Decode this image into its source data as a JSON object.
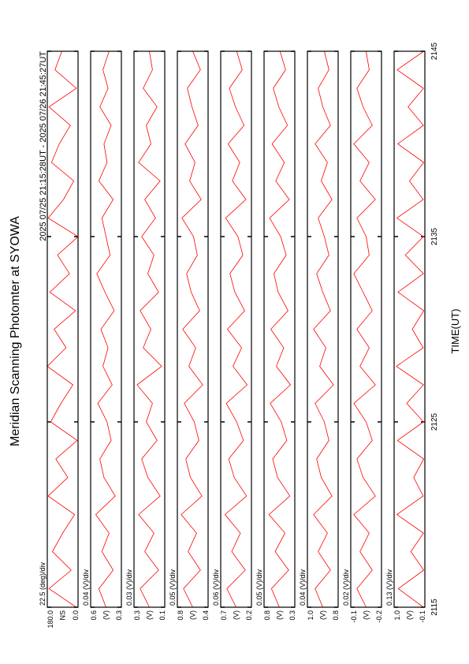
{
  "chart_data": {
    "type": "line",
    "title": "Meridian Scanning Photomter at SYOWA",
    "subtitle": "2025 07/25 21:15:28UT - 2025 07/26 21:45:27UT",
    "xlabel": "TIME(UT)",
    "xlim": [
      2115,
      2145
    ],
    "xticks": [
      2115,
      2125,
      2135,
      2145
    ],
    "x": [
      2115,
      2116,
      2117,
      2118,
      2119,
      2120,
      2121,
      2122,
      2123,
      2124,
      2125,
      2126,
      2127,
      2128,
      2129,
      2130,
      2131,
      2132,
      2133,
      2134,
      2135,
      2136,
      2137,
      2138,
      2139,
      2140,
      2141,
      2142,
      2143,
      2144,
      2145
    ],
    "panels": [
      {
        "header": "22.5 (deg)/div",
        "ylabel": "NS",
        "color": "#ff0000",
        "ylim": [
          0,
          180
        ],
        "yticks": [
          {
            "value": 180,
            "label": "180.0"
          },
          {
            "value": 0,
            "label": "0.0"
          }
        ],
        "values": [
          10,
          170,
          40,
          150,
          90,
          20,
          175,
          60,
          130,
          5,
          160,
          100,
          30,
          180,
          70,
          140,
          15,
          165,
          50,
          120,
          0,
          175,
          85,
          25,
          155,
          110,
          45,
          170,
          10,
          135,
          95
        ]
      },
      {
        "header": "0.04 (V)/div",
        "ylabel": "(V)",
        "color": "#ff0000",
        "ylim": [
          0.3,
          0.6
        ],
        "yticks": [
          0.6,
          0.3
        ],
        "values": [
          0.45,
          0.52,
          0.38,
          0.49,
          0.42,
          0.55,
          0.36,
          0.47,
          0.51,
          0.4,
          0.44,
          0.53,
          0.39,
          0.48,
          0.43,
          0.5,
          0.37,
          0.46,
          0.54,
          0.41,
          0.45,
          0.49,
          0.38,
          0.52,
          0.44,
          0.47,
          0.4,
          0.51,
          0.43,
          0.48,
          0.42
        ]
      },
      {
        "header": "0.03 (V)/div",
        "ylabel": "(V)",
        "color": "#ff0000",
        "ylim": [
          0.1,
          0.3
        ],
        "yticks": [
          0.3,
          0.1
        ],
        "values": [
          0.2,
          0.26,
          0.14,
          0.23,
          0.17,
          0.27,
          0.13,
          0.21,
          0.25,
          0.15,
          0.22,
          0.18,
          0.28,
          0.12,
          0.24,
          0.19,
          0.26,
          0.14,
          0.21,
          0.17,
          0.25,
          0.16,
          0.23,
          0.13,
          0.27,
          0.19,
          0.22,
          0.15,
          0.24,
          0.18,
          0.2
        ]
      },
      {
        "header": "0.05 (V)/div",
        "ylabel": "(V)",
        "color": "#ff0000",
        "ylim": [
          0.4,
          0.8
        ],
        "yticks": [
          0.8,
          0.4
        ],
        "values": [
          0.6,
          0.72,
          0.5,
          0.66,
          0.55,
          0.75,
          0.48,
          0.63,
          0.69,
          0.52,
          0.58,
          0.71,
          0.47,
          0.65,
          0.56,
          0.73,
          0.51,
          0.62,
          0.68,
          0.54,
          0.59,
          0.74,
          0.49,
          0.64,
          0.57,
          0.7,
          0.53,
          0.61,
          0.67,
          0.5,
          0.6
        ]
      },
      {
        "header": "0.06 (V)/div",
        "ylabel": "(V)",
        "color": "#ff0000",
        "ylim": [
          0.2,
          0.7
        ],
        "yticks": [
          0.7,
          0.2
        ],
        "values": [
          0.45,
          0.6,
          0.3,
          0.52,
          0.38,
          0.63,
          0.28,
          0.48,
          0.57,
          0.33,
          0.44,
          0.61,
          0.27,
          0.5,
          0.36,
          0.59,
          0.31,
          0.47,
          0.55,
          0.34,
          0.42,
          0.62,
          0.29,
          0.51,
          0.39,
          0.58,
          0.32,
          0.46,
          0.56,
          0.35,
          0.44
        ]
      },
      {
        "header": "0.05 (V)/div",
        "ylabel": "(V)",
        "color": "#ff0000",
        "ylim": [
          0.3,
          0.8
        ],
        "yticks": [
          0.8,
          0.3
        ],
        "values": [
          0.55,
          0.68,
          0.4,
          0.62,
          0.46,
          0.72,
          0.38,
          0.58,
          0.66,
          0.43,
          0.52,
          0.7,
          0.37,
          0.6,
          0.48,
          0.69,
          0.41,
          0.57,
          0.64,
          0.44,
          0.53,
          0.71,
          0.39,
          0.61,
          0.47,
          0.67,
          0.42,
          0.56,
          0.65,
          0.45,
          0.54
        ]
      },
      {
        "header": "0.04 (V)/div",
        "ylabel": "(V)",
        "color": "#ff0000",
        "ylim": [
          0.8,
          1.0
        ],
        "yticks": [
          {
            "value": 1.0,
            "label": "1.0"
          },
          0.8
        ],
        "values": [
          0.9,
          0.95,
          0.85,
          0.93,
          0.87,
          0.96,
          0.84,
          0.91,
          0.94,
          0.86,
          0.89,
          0.95,
          0.83,
          0.92,
          0.88,
          0.96,
          0.85,
          0.9,
          0.94,
          0.86,
          0.89,
          0.93,
          0.84,
          0.91,
          0.87,
          0.95,
          0.85,
          0.9,
          0.93,
          0.86,
          0.89
        ]
      },
      {
        "header": "0.02 (V)/div",
        "ylabel": "(V)",
        "color": "#ff0000",
        "ylim": [
          -0.2,
          -0.1
        ],
        "yticks": [
          -0.1,
          -0.2
        ],
        "values": [
          -0.15,
          -0.12,
          -0.17,
          -0.13,
          -0.16,
          -0.11,
          -0.18,
          -0.14,
          -0.12,
          -0.17,
          -0.15,
          -0.11,
          -0.18,
          -0.13,
          -0.16,
          -0.12,
          -0.17,
          -0.14,
          -0.11,
          -0.16,
          -0.15,
          -0.12,
          -0.18,
          -0.13,
          -0.16,
          -0.11,
          -0.17,
          -0.14,
          -0.12,
          -0.16,
          -0.15
        ]
      },
      {
        "header": "0.13 (V)/div",
        "ylabel": "(V)",
        "color": "#ff0000",
        "ylim": [
          -0.1,
          1.0
        ],
        "yticks": [
          {
            "value": 1.0,
            "label": "1.0"
          },
          -0.1
        ],
        "values": [
          -0.05,
          0.85,
          -0.06,
          0.4,
          -0.05,
          0.9,
          -0.04,
          0.3,
          -0.06,
          0.88,
          -0.05,
          0.55,
          -0.05,
          0.92,
          -0.04,
          0.35,
          -0.06,
          0.86,
          -0.05,
          0.6,
          -0.05,
          0.9,
          -0.04,
          0.45,
          -0.06,
          0.87,
          -0.05,
          0.5,
          -0.05,
          0.89,
          -0.06
        ]
      }
    ]
  }
}
